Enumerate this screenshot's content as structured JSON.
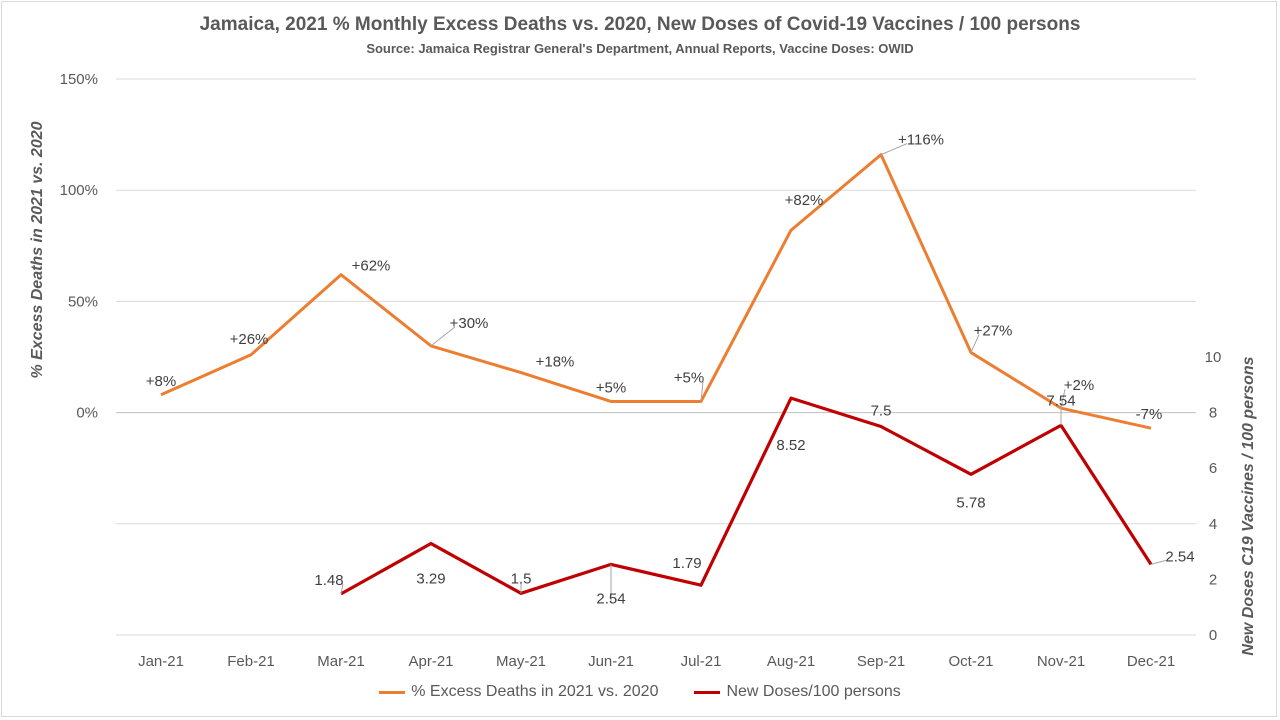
{
  "title": "Jamaica, 2021 % Monthly Excess Deaths vs. 2020, New Doses of Covid-19 Vaccines / 100 persons",
  "subtitle": "Source: Jamaica Registrar General's Department, Annual Reports, Vaccine Doses: OWID",
  "chart_data": {
    "type": "line",
    "categories": [
      "Jan-21",
      "Feb-21",
      "Mar-21",
      "Apr-21",
      "May-21",
      "Jun-21",
      "Jul-21",
      "Aug-21",
      "Sep-21",
      "Oct-21",
      "Nov-21",
      "Dec-21"
    ],
    "ylabel": "% Excess Deaths in 2021 vs. 2020",
    "y2label": "New Doses C19 Vaccines / 100 persons",
    "y_ticks": [
      "0%",
      "50%",
      "100%",
      "150%"
    ],
    "y_tick_values": [
      0,
      50,
      100,
      150
    ],
    "ylim": [
      -100,
      150
    ],
    "y2_ticks": [
      "0",
      "2",
      "4",
      "6",
      "8",
      "10"
    ],
    "y2_tick_values": [
      0,
      2,
      4,
      6,
      8,
      10
    ],
    "y2lim": [
      0,
      20
    ],
    "grid": true,
    "legend_position": "bottom",
    "series": [
      {
        "name": "% Excess Deaths in 2021 vs. 2020",
        "axis": "left",
        "color": "#ED7D31",
        "values": [
          8,
          26,
          62,
          30,
          18,
          5,
          5,
          82,
          116,
          27,
          2,
          -7
        ],
        "labels": [
          "+8%",
          "+26%",
          "+62%",
          "+30%",
          "+18%",
          "+5%",
          "+5%",
          "+82%",
          "+116%",
          "+27%",
          "+2%",
          "-7%"
        ]
      },
      {
        "name": "New Doses/100 persons",
        "axis": "right",
        "color": "#C00000",
        "values": [
          null,
          null,
          1.48,
          3.29,
          1.5,
          2.54,
          1.79,
          8.52,
          7.5,
          5.78,
          7.54,
          2.54
        ],
        "labels": [
          "",
          "",
          "1.48",
          "3.29",
          "1.5",
          "2.54",
          "1.79",
          "8.52",
          "7.5",
          "5.78",
          "7.54",
          "2.54"
        ]
      }
    ]
  }
}
